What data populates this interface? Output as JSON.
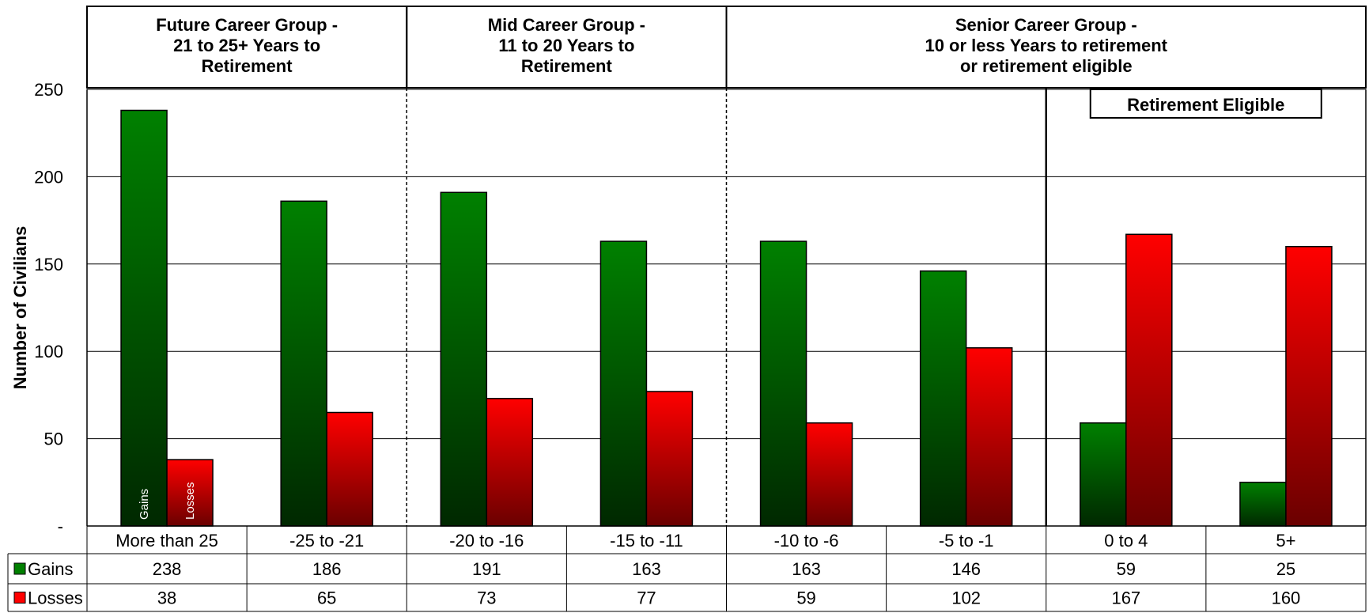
{
  "chart_data": {
    "type": "bar",
    "ylabel": "Number of Civilians",
    "ylim": [
      0,
      250
    ],
    "y_ticks": [
      "-",
      "50",
      "100",
      "150",
      "200",
      "250"
    ],
    "categories": [
      "More than 25",
      "-25 to -21",
      "-20 to -16",
      "-15 to -11",
      "-10 to -6",
      "-5 to -1",
      "0 to 4",
      "5+"
    ],
    "series": [
      {
        "name": "Gains",
        "values": [
          238,
          186,
          191,
          163,
          163,
          146,
          59,
          25
        ],
        "color": "#008000",
        "color_dark": "#002800"
      },
      {
        "name": "Losses",
        "values": [
          38,
          65,
          73,
          77,
          59,
          102,
          167,
          160
        ],
        "color": "#ff0000",
        "color_dark": "#6a0000"
      }
    ],
    "bar_labels": {
      "gains": "Gains",
      "losses": "Losses"
    },
    "groups": [
      {
        "lines": [
          "Future Career Group -",
          "21 to 25+ Years to",
          "Retirement"
        ],
        "start": 0,
        "end": 1
      },
      {
        "lines": [
          "Mid Career Group -",
          "11 to 20 Years to",
          "Retirement"
        ],
        "start": 2,
        "end": 3
      },
      {
        "lines": [
          "Senior Career Group -",
          "10 or less Years to retirement",
          "or retirement eligible"
        ],
        "start": 4,
        "end": 7
      }
    ],
    "annotation": {
      "label": "Retirement Eligible",
      "start": 6,
      "end": 7
    },
    "grid": true,
    "legend": "data-table"
  }
}
